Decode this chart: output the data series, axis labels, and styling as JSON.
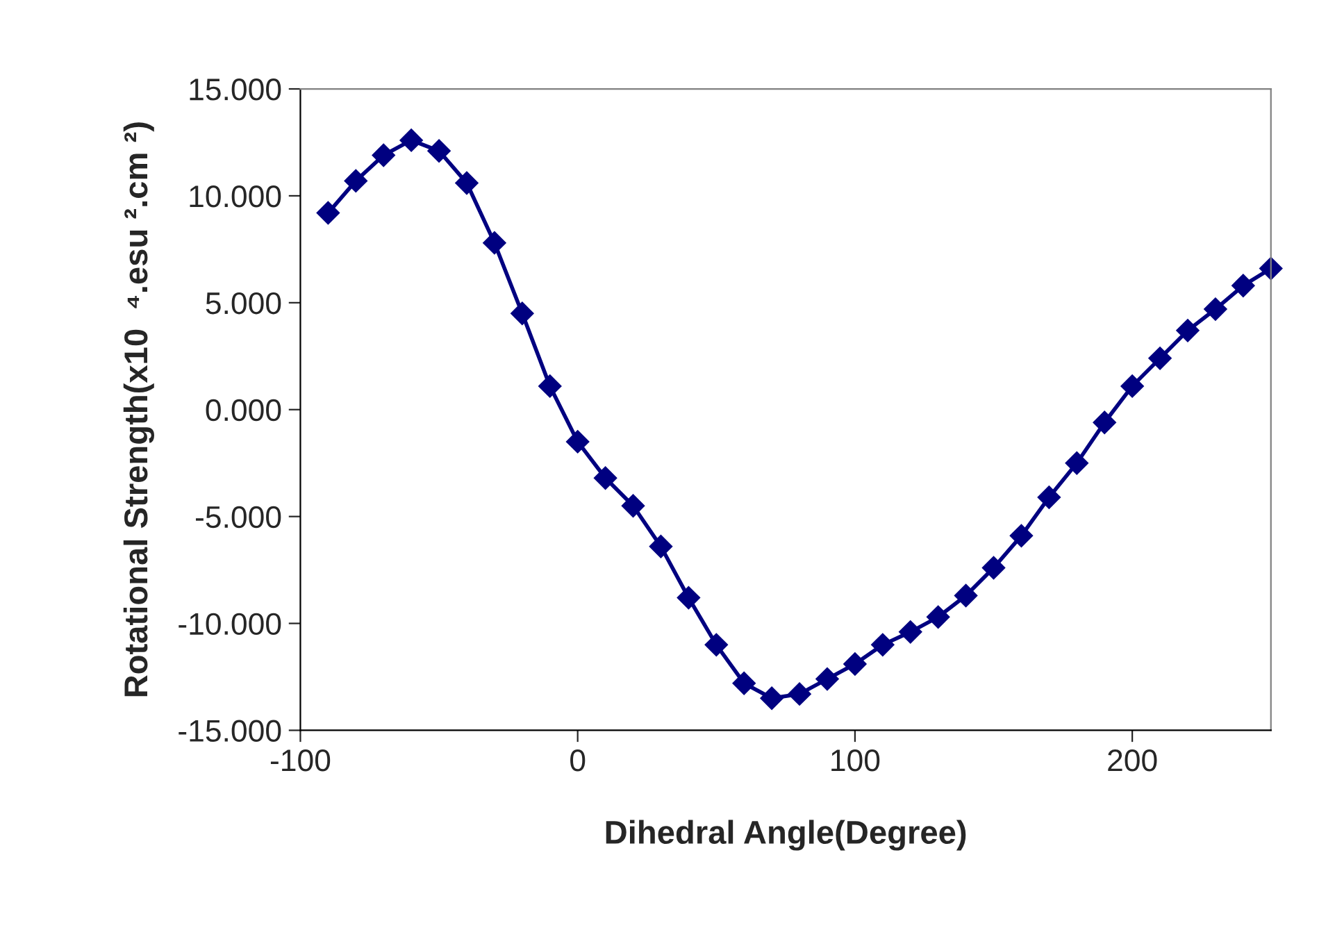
{
  "chart_data": {
    "type": "line",
    "xlabel": "Dihedral Angle(Degree)",
    "ylabel": "Rotational Strength(x10  ⁴.esu ².cm ²)",
    "x": [
      -90,
      -80,
      -70,
      -60,
      -50,
      -40,
      -30,
      -20,
      -10,
      0,
      10,
      20,
      30,
      40,
      50,
      60,
      70,
      80,
      90,
      100,
      110,
      120,
      130,
      140,
      150,
      160,
      170,
      180,
      190,
      200,
      210,
      220,
      230,
      240,
      250
    ],
    "series": [
      {
        "color": "#000080",
        "values": [
          9.2,
          10.7,
          11.9,
          12.6,
          12.1,
          10.6,
          7.8,
          4.5,
          1.1,
          -1.5,
          -3.2,
          -4.5,
          -6.4,
          -8.8,
          -11.0,
          -12.8,
          -13.5,
          -13.3,
          -12.6,
          -11.9,
          -11.0,
          -10.4,
          -9.7,
          -8.7,
          -7.4,
          -5.9,
          -4.1,
          -2.5,
          -0.6,
          1.1,
          2.4,
          3.7,
          4.7,
          5.8,
          6.6
        ]
      }
    ],
    "xlim": [
      -100,
      250
    ],
    "xticks": [
      -100,
      0,
      100,
      200
    ],
    "ylim": [
      -15,
      15
    ],
    "yticks": [
      {
        "value": -15,
        "label": "-15.000"
      },
      {
        "value": -10,
        "label": "-10.000"
      },
      {
        "value": -5,
        "label": "-5.000"
      },
      {
        "value": 0,
        "label": "0.000"
      },
      {
        "value": 5,
        "label": "5.000"
      },
      {
        "value": 10,
        "label": "10.000"
      },
      {
        "value": 15,
        "label": "15.000"
      }
    ],
    "grid": false,
    "legend": false,
    "marker": "diamond",
    "line_style": "solid"
  }
}
